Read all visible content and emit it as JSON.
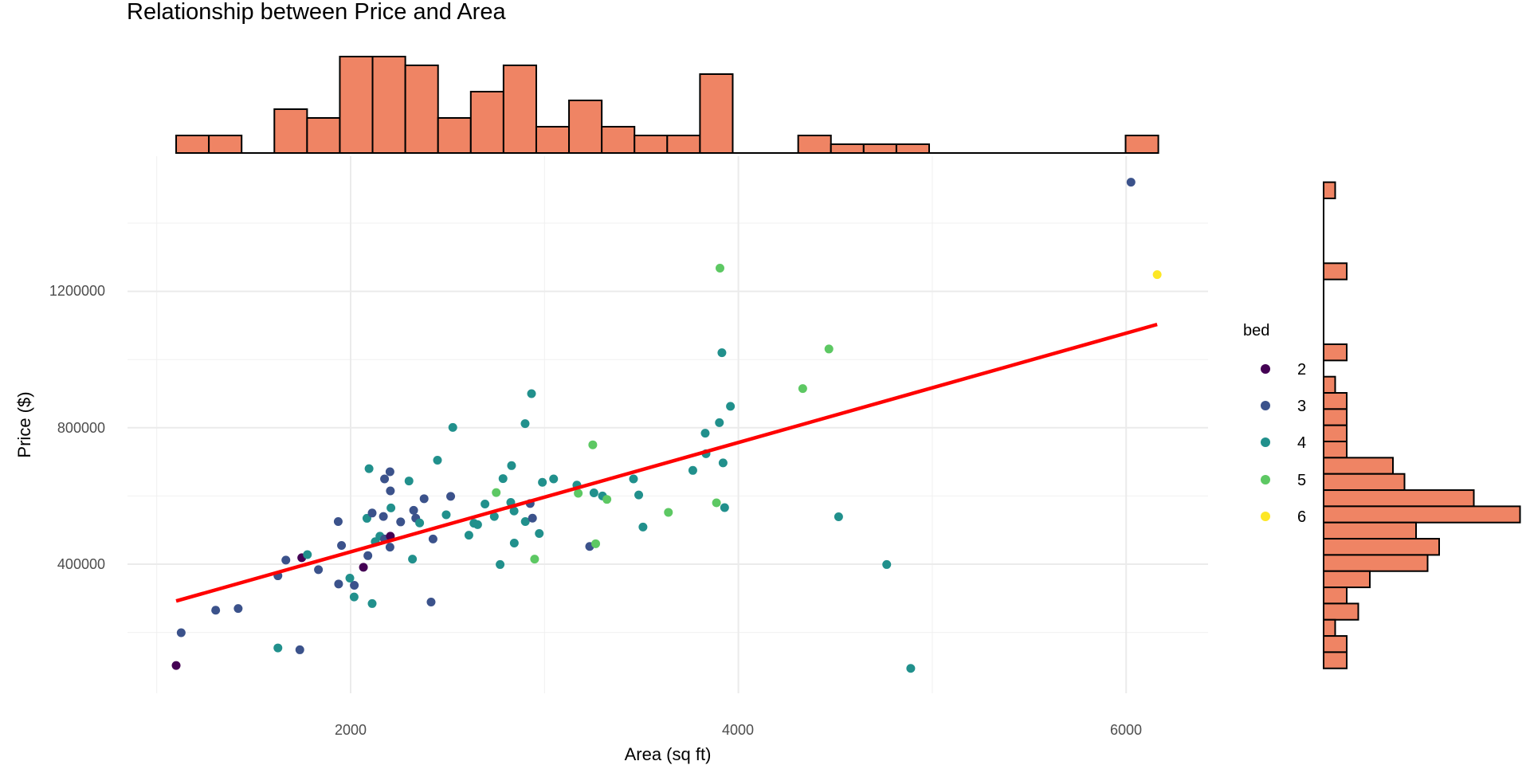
{
  "chart_data": {
    "type": "scatter",
    "title": "Relationship between Price and Area",
    "xlabel": "Area (sq ft)",
    "ylabel": "Price ($)",
    "xlim": [
      847,
      6413
    ],
    "ylim": [
      23200,
      1591000
    ],
    "x_ticks": [
      "2000",
      "4000",
      "6000"
    ],
    "y_ticks": [
      "400000",
      "800000",
      "1200000"
    ],
    "grid": true,
    "legend": {
      "title": "bed",
      "position": "right",
      "entries": [
        {
          "label": "2",
          "color": "#440154"
        },
        {
          "label": "3",
          "color": "#3B528B"
        },
        {
          "label": "4",
          "color": "#21908C"
        },
        {
          "label": "5",
          "color": "#5DC863"
        },
        {
          "label": "6",
          "color": "#FDE725"
        }
      ]
    },
    "points_fields": [
      "area",
      "price",
      "bed"
    ],
    "points": [
      [
        1100,
        103000,
        2
      ],
      [
        1126,
        199000,
        3
      ],
      [
        1304,
        265000,
        3
      ],
      [
        1420,
        270000,
        3
      ],
      [
        1625,
        154500,
        4
      ],
      [
        1738,
        149000,
        3
      ],
      [
        1625,
        366000,
        3
      ],
      [
        1666,
        412000,
        3
      ],
      [
        1748,
        419000,
        2
      ],
      [
        1777,
        428000,
        4
      ],
      [
        1834,
        384000,
        3
      ],
      [
        1936,
        525000,
        3
      ],
      [
        1953,
        455000,
        3
      ],
      [
        1938,
        342000,
        3
      ],
      [
        2019,
        338000,
        3
      ],
      [
        1996,
        359000,
        4
      ],
      [
        2018,
        304000,
        4
      ],
      [
        2111,
        284500,
        4
      ],
      [
        2066,
        391000,
        2
      ],
      [
        2089,
        425000,
        3
      ],
      [
        2095,
        680000,
        4
      ],
      [
        2084,
        534500,
        4
      ],
      [
        2111,
        550000,
        3
      ],
      [
        2169,
        540000,
        3
      ],
      [
        2175,
        650000,
        3
      ],
      [
        2203,
        671000,
        3
      ],
      [
        2205,
        615000,
        3
      ],
      [
        2208,
        565000,
        4
      ],
      [
        2151,
        482000,
        4
      ],
      [
        2127,
        466000,
        4
      ],
      [
        2175,
        474000,
        3
      ],
      [
        2205,
        482000,
        2
      ],
      [
        2203,
        450000,
        3
      ],
      [
        2258,
        524000,
        3
      ],
      [
        2301,
        644000,
        4
      ],
      [
        2325,
        558000,
        3
      ],
      [
        2336,
        535000,
        3
      ],
      [
        2356,
        521000,
        4
      ],
      [
        2319,
        415000,
        4
      ],
      [
        2379,
        592000,
        3
      ],
      [
        2425,
        474000,
        3
      ],
      [
        2415,
        289000,
        3
      ],
      [
        2448,
        705000,
        4
      ],
      [
        2527,
        801000,
        4
      ],
      [
        2516,
        599000,
        3
      ],
      [
        2493,
        545000,
        4
      ],
      [
        2610,
        485000,
        4
      ],
      [
        2636,
        520000,
        4
      ],
      [
        2655,
        516000,
        4
      ],
      [
        2693,
        576500,
        4
      ],
      [
        2741,
        540000,
        4
      ],
      [
        2751,
        610000,
        5
      ],
      [
        2786,
        651000,
        4
      ],
      [
        2771,
        399000,
        4
      ],
      [
        2830,
        689000,
        4
      ],
      [
        2826,
        581000,
        4
      ],
      [
        2843,
        556000,
        4
      ],
      [
        2844,
        462000,
        4
      ],
      [
        2901,
        525000,
        4
      ],
      [
        2926,
        578000,
        3
      ],
      [
        2938,
        535000,
        3
      ],
      [
        2973,
        490000,
        4
      ],
      [
        2949,
        415000,
        5
      ],
      [
        2900,
        812000,
        4
      ],
      [
        2933,
        900000,
        4
      ],
      [
        2989,
        640000,
        4
      ],
      [
        3047,
        650000,
        4
      ],
      [
        3167,
        632000,
        4
      ],
      [
        3174,
        608000,
        5
      ],
      [
        3255,
        609000,
        4
      ],
      [
        3299,
        600000,
        4
      ],
      [
        3322,
        590000,
        5
      ],
      [
        3249,
        750000,
        5
      ],
      [
        3233,
        452000,
        3
      ],
      [
        3264,
        460000,
        5
      ],
      [
        3459,
        650000,
        4
      ],
      [
        3486,
        603000,
        4
      ],
      [
        3508,
        509000,
        4
      ],
      [
        3639,
        552000,
        5
      ],
      [
        3765,
        675000,
        4
      ],
      [
        3829,
        784000,
        4
      ],
      [
        3833,
        724000,
        4
      ],
      [
        3902,
        815000,
        4
      ],
      [
        3959,
        863000,
        4
      ],
      [
        3921,
        697000,
        4
      ],
      [
        3887,
        580000,
        5
      ],
      [
        3929,
        566000,
        4
      ],
      [
        4332,
        915000,
        5
      ],
      [
        4517,
        539000,
        4
      ],
      [
        4765,
        399000,
        4
      ],
      [
        4889,
        94500,
        4
      ],
      [
        3905,
        1268000,
        5
      ],
      [
        3915,
        1020000,
        4
      ],
      [
        4467,
        1031000,
        5
      ],
      [
        6025,
        1520000,
        3
      ],
      [
        6160,
        1249000,
        6
      ]
    ],
    "regression_line": {
      "color": "#FF0000",
      "x": [
        1100,
        6160
      ],
      "y": [
        292000,
        1103000
      ]
    },
    "marginal_x_histogram": {
      "range": [
        1100,
        6166
      ],
      "bins": 30,
      "counts": [
        2,
        2,
        0,
        5,
        4,
        11,
        11,
        10,
        4,
        7,
        10,
        3,
        6,
        3,
        2,
        2,
        9,
        0,
        0,
        2,
        1,
        1,
        1,
        0,
        0,
        0,
        0,
        0,
        0,
        2
      ],
      "fill": "#EF8464"
    },
    "marginal_y_histogram": {
      "range": [
        94500,
        1520000
      ],
      "bins": 30,
      "counts_top_to_bottom": [
        1,
        0,
        0,
        0,
        0,
        2,
        0,
        0,
        0,
        0,
        2,
        0,
        1,
        2,
        2,
        2,
        2,
        6,
        7,
        13,
        17,
        8,
        10,
        9,
        4,
        2,
        3,
        1,
        2,
        2
      ],
      "fill": "#EF8464"
    }
  }
}
